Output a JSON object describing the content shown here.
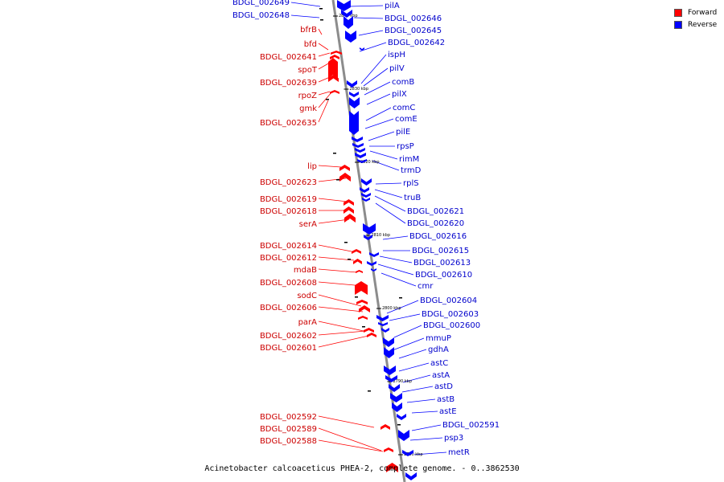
{
  "caption": "Acinetobacter calcoaceticus PHEA-2, complete genome. - 0..3862530",
  "colors": {
    "forward": "#ff0000",
    "reverse": "#0000ff",
    "forward_label": "#cc0000",
    "reverse_label": "#0000cc",
    "backbone": "#808080"
  },
  "legend": [
    {
      "label": "Forward",
      "strand": "forward"
    },
    {
      "label": "Reverse",
      "strand": "reverse"
    }
  ],
  "ticks": [
    "2840 kbp",
    "2830 kbp",
    "2820 kbp",
    "2810 kbp",
    "2800 kbp",
    "2790 kbp",
    "2780 kbp"
  ],
  "forward_genes": [
    "bfrB",
    "bfd",
    "BDGL_002641",
    "spoT",
    "BDGL_002639",
    "rpoZ",
    "gmk",
    "BDGL_002635",
    "lip",
    "BDGL_002623",
    "BDGL_002619",
    "BDGL_002618",
    "serA",
    "BDGL_002614",
    "BDGL_002612",
    "mdaB",
    "BDGL_002608",
    "sodC",
    "BDGL_002606",
    "parA",
    "BDGL_002602",
    "BDGL_002601",
    "BDGL_002592",
    "BDGL_002589",
    "BDGL_002588"
  ],
  "reverse_genes_left": [
    "BDGL_002649",
    "BDGL_002648"
  ],
  "reverse_genes": [
    "pilA",
    "BDGL_002646",
    "BDGL_002645",
    "BDGL_002642",
    "ispH",
    "pilV",
    "comB",
    "pilX",
    "comC",
    "comE",
    "pilE",
    "rpsP",
    "rimM",
    "trmD",
    "rplS",
    "truB",
    "BDGL_002621",
    "BDGL_002620",
    "BDGL_002616",
    "BDGL_002615",
    "BDGL_002613",
    "BDGL_002610",
    "cmr",
    "BDGL_002604",
    "BDGL_002603",
    "BDGL_002600",
    "mmuP",
    "gdhA",
    "astC",
    "astA",
    "astD",
    "astB",
    "astE",
    "BDGL_002591",
    "psp3",
    "metR"
  ]
}
